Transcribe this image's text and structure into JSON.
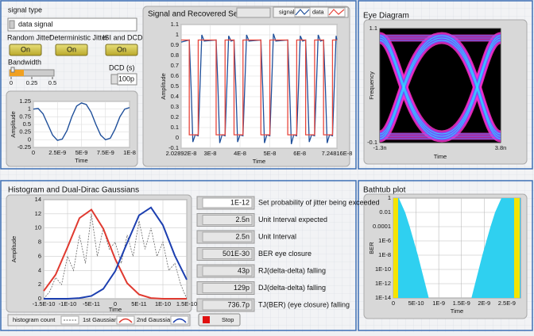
{
  "signal_type": {
    "label": "signal type",
    "value": "data signal"
  },
  "toggles": [
    {
      "label": "Random Jitter",
      "state": "On"
    },
    {
      "label": "Deterministic Jitter",
      "state": "On"
    },
    {
      "label": "ISI and DCD",
      "state": "On"
    }
  ],
  "bandwidth": {
    "label": "Bandwidth",
    "ticks": [
      0,
      0.25,
      0.5
    ]
  },
  "dcd": {
    "label": "DCD (s)",
    "value": "100p"
  },
  "input_chart": {
    "type": "line",
    "y_label": "Amplitude",
    "x_label": "Time",
    "xlim": [
      0,
      1e-08
    ],
    "ylim": [
      -0.25,
      1.25
    ],
    "xticks": [
      0,
      {
        "value": 2.5e-09,
        "label": "2.5E-9"
      },
      {
        "value": 5e-09,
        "label": "5E-9"
      },
      {
        "value": 7.5e-09,
        "label": "7.5E-9"
      },
      {
        "value": 1e-08,
        "label": "1E-8"
      }
    ],
    "yticks": [
      -0.25,
      0,
      0.25,
      0.5,
      0.75,
      1,
      1.25
    ],
    "series": [
      {
        "color": "#1f4f9a",
        "x": [
          0,
          5e-10,
          1e-09,
          1.5e-09,
          2e-09,
          2.5e-09,
          3e-09,
          3.5e-09,
          4e-09,
          4.5e-09,
          5e-09,
          5.5e-09,
          6e-09,
          6.5e-09,
          7e-09,
          7.5e-09,
          8e-09,
          8.5e-09,
          9e-09,
          9.5e-09,
          1e-08
        ],
        "values": [
          1.0,
          1.02,
          0.85,
          0.5,
          0.15,
          -0.02,
          0.02,
          0.3,
          0.75,
          1.1,
          1.2,
          1.15,
          0.9,
          0.5,
          0.15,
          0.0,
          0.05,
          0.35,
          0.75,
          1.0,
          1.05
        ]
      }
    ]
  },
  "signal_chart": {
    "type": "line",
    "title": "Signal and Recovered Sequence",
    "y_label": "Amplitude",
    "x_label": "Time",
    "xlim": [
      2.02892e-08,
      7.24816e-08
    ],
    "ylim": [
      -0.1,
      1.1
    ],
    "xticks": [
      {
        "value": 2.02892e-08,
        "label": "2.02892E-8"
      },
      {
        "value": 3e-08,
        "label": "3E-8"
      },
      {
        "value": 4e-08,
        "label": "4E-8"
      },
      {
        "value": 5e-08,
        "label": "5E-8"
      },
      {
        "value": 6e-08,
        "label": "6E-8"
      },
      {
        "value": 7.24816e-08,
        "label": "7.24816E-8"
      }
    ],
    "yticks": [
      -0.1,
      0,
      0.1,
      0.2,
      0.3,
      0.4,
      0.5,
      0.6,
      0.7,
      0.8,
      0.9,
      1,
      1.1
    ],
    "series": [
      {
        "name": "signal",
        "color": "#1f4f9a",
        "x": [
          2.03e-08,
          2.3e-08,
          2.36e-08,
          2.42e-08,
          2.5e-08,
          2.6e-08,
          2.66e-08,
          2.72e-08,
          2.8e-08,
          3.2e-08,
          3.26e-08,
          3.32e-08,
          3.4e-08,
          3.5e-08,
          3.56e-08,
          3.62e-08,
          3.7e-08,
          3.8e-08,
          3.86e-08,
          3.92e-08,
          4e-08,
          4.1e-08,
          4.16e-08,
          4.22e-08,
          4.3e-08,
          4.7e-08,
          4.76e-08,
          4.82e-08,
          4.9e-08,
          5e-08,
          5.06e-08,
          5.12e-08,
          5.2e-08,
          5.6e-08,
          5.66e-08,
          5.72e-08,
          5.8e-08,
          5.9e-08,
          5.96e-08,
          6.02e-08,
          6.1e-08,
          6.2e-08,
          6.26e-08,
          6.32e-08,
          6.4e-08,
          6.5e-08,
          6.56e-08,
          6.62e-08,
          6.7e-08,
          6.8e-08,
          6.86e-08,
          6.92e-08,
          7e-08,
          7.1e-08,
          7.16e-08,
          7.22e-08,
          7.248e-08
        ],
        "values": [
          0.93,
          0.95,
          0.5,
          -0.04,
          0.03,
          0.02,
          0.5,
          1.0,
          0.94,
          0.95,
          0.5,
          -0.05,
          0.03,
          0.02,
          0.5,
          0.99,
          0.94,
          0.95,
          0.5,
          -0.04,
          0.03,
          0.02,
          0.5,
          1.0,
          0.94,
          0.95,
          0.5,
          -0.05,
          0.03,
          0.02,
          0.5,
          1.01,
          0.94,
          0.95,
          0.5,
          -0.06,
          0.03,
          0.02,
          0.5,
          0.99,
          0.94,
          0.95,
          0.5,
          -0.04,
          0.03,
          0.02,
          0.5,
          1.0,
          0.94,
          0.95,
          0.5,
          -0.05,
          0.03,
          0.02,
          0.5,
          0.99,
          0.95
        ]
      },
      {
        "name": "data",
        "color": "#e8463c",
        "x": [
          2.03e-08,
          2.3e-08,
          2.3e-08,
          2.6e-08,
          2.6e-08,
          3.2e-08,
          3.2e-08,
          3.5e-08,
          3.5e-08,
          3.8e-08,
          3.8e-08,
          4.1e-08,
          4.1e-08,
          4.7e-08,
          4.7e-08,
          5e-08,
          5e-08,
          5.6e-08,
          5.6e-08,
          5.9e-08,
          5.9e-08,
          6.2e-08,
          6.2e-08,
          6.5e-08,
          6.5e-08,
          6.8e-08,
          6.8e-08,
          7.1e-08,
          7.1e-08,
          7.248e-08
        ],
        "values": [
          0.95,
          0.95,
          0.03,
          0.03,
          0.95,
          0.95,
          0.03,
          0.03,
          0.95,
          0.95,
          0.03,
          0.03,
          0.95,
          0.95,
          0.03,
          0.03,
          0.95,
          0.95,
          0.03,
          0.03,
          0.95,
          0.95,
          0.03,
          0.03,
          0.95,
          0.95,
          0.03,
          0.03,
          0.95,
          0.95
        ]
      }
    ]
  },
  "eye_chart": {
    "type": "eye",
    "title": "Eye Diagram",
    "y_label": "Frequency",
    "x_label": "Time",
    "xlim": [
      -1.3e-09,
      3.8e-09
    ],
    "ylim": [
      -0.1,
      1.1
    ],
    "xticks": [
      {
        "value": -1.3e-09,
        "label": "-1.3n"
      },
      {
        "value": 3.8e-09,
        "label": "3.8n"
      }
    ],
    "yticks": [
      -0.1,
      1.1
    ]
  },
  "histogram_chart": {
    "type": "line",
    "title": "Histogram and Dual-Dirac Gaussians",
    "y_label": "Amplitude",
    "x_label": "Time",
    "xlim": [
      -1.5e-10,
      1.5e-10
    ],
    "ylim": [
      0,
      14
    ],
    "xticks": [
      {
        "value": -1.5e-10,
        "label": "-1.5E-10"
      },
      {
        "value": -1e-10,
        "label": "-1E-10"
      },
      {
        "value": -5e-11,
        "label": "-5E-11"
      },
      0,
      {
        "value": 5e-11,
        "label": "5E-11"
      },
      {
        "value": 1e-10,
        "label": "1E-10"
      },
      {
        "value": 1.5e-10,
        "label": "1.5E-10"
      }
    ],
    "yticks": [
      0,
      2,
      4,
      6,
      8,
      10,
      12,
      14
    ],
    "series": [
      {
        "name": "histogram count",
        "color": "#666666",
        "x": [
          -1.5e-10,
          -1.375e-10,
          -1.25e-10,
          -1.125e-10,
          -1e-10,
          -8.75e-11,
          -7.5e-11,
          -6.25e-11,
          -5e-11,
          -3.75e-11,
          -2.5e-11,
          -1.25e-11,
          0,
          1.25e-11,
          2.5e-11,
          3.75e-11,
          5e-11,
          6.25e-11,
          7.5e-11,
          8.75e-11,
          1e-10,
          1.125e-10,
          1.25e-10,
          1.375e-10,
          1.5e-10
        ],
        "values": [
          0,
          1,
          3,
          2,
          6,
          4,
          9,
          5,
          12,
          6,
          10,
          7,
          8,
          5,
          9,
          6,
          11,
          7,
          10,
          6,
          8,
          4,
          5,
          2,
          0
        ]
      },
      {
        "name": "1st Gaussian",
        "color": "#e03a30",
        "x": [
          -1.5e-10,
          -1.25e-10,
          -1e-10,
          -7.5e-11,
          -5e-11,
          -2.5e-11,
          0,
          2.5e-11,
          5e-11,
          7.5e-11,
          1e-10,
          1.25e-10,
          1.5e-10
        ],
        "values": [
          1.1,
          3.4,
          7.3,
          11.4,
          12.6,
          9.9,
          5.6,
          2.2,
          0.6,
          0.1,
          0,
          0,
          0
        ]
      },
      {
        "name": "2nd Gaussian",
        "color": "#1c3fb0",
        "x": [
          -1.5e-10,
          -1.25e-10,
          -1e-10,
          -7.5e-11,
          -5e-11,
          -2.5e-11,
          0,
          2.5e-11,
          5e-11,
          7.5e-11,
          1e-10,
          1.25e-10,
          1.5e-10
        ],
        "values": [
          0,
          0,
          0,
          0.1,
          0.4,
          1.4,
          3.9,
          7.9,
          11.8,
          12.9,
          10.4,
          6.1,
          2.7
        ]
      }
    ]
  },
  "stop_button": "Stop",
  "indicators": [
    {
      "value": "1E-12",
      "label": "Set probability of jitter being  exceeded"
    },
    {
      "value": "2.5n",
      "label": "Unit Interval expected"
    },
    {
      "value": "2.5n",
      "label": "Unit Interval"
    },
    {
      "value": "501E-30",
      "label": "BER eye closure"
    },
    {
      "value": "43p",
      "label": "RJ(delta-delta) falling"
    },
    {
      "value": "129p",
      "label": "DJ(delta-delta) falling"
    },
    {
      "value": "736.7p",
      "label": "TJ(BER) (eye closure) falling"
    }
  ],
  "bathtub_chart": {
    "type": "area",
    "title": "Bathtub plot",
    "y_label": "BER",
    "x_label": "Time",
    "log_y": true,
    "xlim": [
      0,
      2.8e-09
    ],
    "ylim": [
      1e-14,
      1
    ],
    "xticks": [
      0,
      {
        "value": 5e-10,
        "label": "5E-10"
      },
      {
        "value": 1e-09,
        "label": "1E-9"
      },
      {
        "value": 1.5e-09,
        "label": "1.5E-9"
      },
      {
        "value": 2e-09,
        "label": "2E-9"
      },
      {
        "value": 2.5e-09,
        "label": "2.5E-9"
      }
    ],
    "yticks": [
      1,
      0.01,
      0.0001,
      {
        "value": 1e-06,
        "label": "1E-6"
      },
      {
        "value": 1e-08,
        "label": "1E-8"
      },
      {
        "value": 1e-10,
        "label": "1E-10"
      },
      {
        "value": 1e-12,
        "label": "1E-12"
      },
      {
        "value": 1e-14,
        "label": "1E-14"
      }
    ],
    "series": [
      {
        "color": "#2fd0f0",
        "x": [
          1.2e-10,
          2.6e-10,
          3.6e-10,
          4.5e-10,
          5.4e-10,
          6.2e-10,
          7e-10,
          7.8e-10
        ],
        "values": [
          1,
          0.01,
          0.0001,
          1e-06,
          1e-08,
          1e-10,
          1e-12,
          1e-14
        ]
      },
      {
        "color": "#2fd0f0",
        "x": [
          2.38e-09,
          2.24e-09,
          2.14e-09,
          2.05e-09,
          1.96e-09,
          1.88e-09,
          1.8e-09,
          1.72e-09
        ],
        "values": [
          1,
          0.01,
          0.0001,
          1e-06,
          1e-08,
          1e-10,
          1e-12,
          1e-14
        ]
      }
    ]
  }
}
